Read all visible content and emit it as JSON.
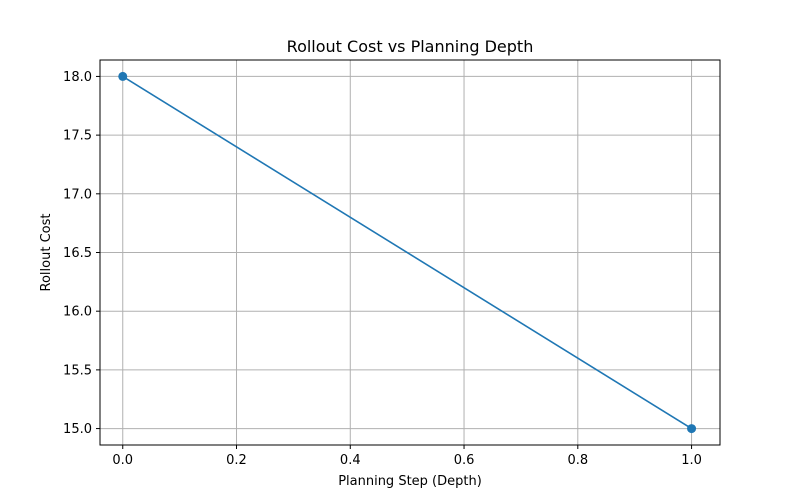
{
  "chart_data": {
    "type": "line",
    "title": "Rollout Cost vs Planning Depth",
    "xlabel": "Planning Step (Depth)",
    "ylabel": "Rollout Cost",
    "xlim": [
      -0.04,
      1.05
    ],
    "ylim": [
      14.86,
      18.14
    ],
    "xticks": [
      0.0,
      0.2,
      0.4,
      0.6,
      0.8,
      1.0
    ],
    "xtick_labels": [
      "0.0",
      "0.2",
      "0.4",
      "0.6",
      "0.8",
      "1.0"
    ],
    "yticks": [
      15.0,
      15.5,
      16.0,
      16.5,
      17.0,
      17.5,
      18.0
    ],
    "ytick_labels": [
      "15.0",
      "15.5",
      "16.0",
      "16.5",
      "17.0",
      "17.5",
      "18.0"
    ],
    "grid": true,
    "series": [
      {
        "x": [
          0,
          1
        ],
        "y": [
          18.0,
          15.0
        ],
        "color": "#1f77b4",
        "marker": "circle"
      }
    ]
  }
}
